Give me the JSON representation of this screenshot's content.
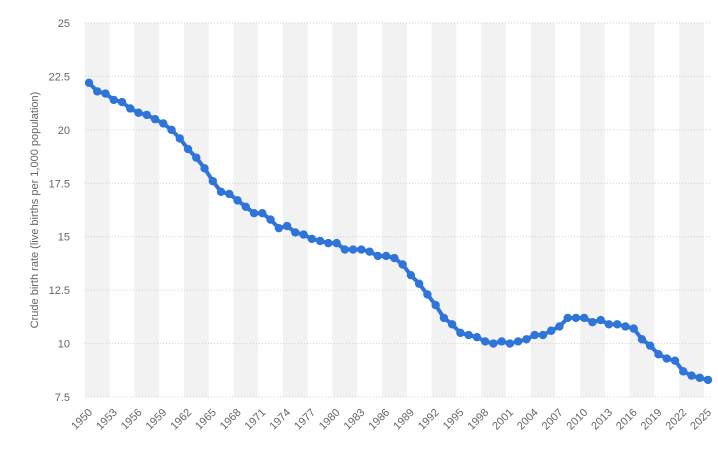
{
  "chart_data": {
    "type": "line",
    "title": "",
    "xlabel": "",
    "ylabel": "Crude birth rate (live births per 1,000 population)",
    "ylim": [
      7.5,
      25
    ],
    "xlim": [
      1950,
      2025
    ],
    "y_ticks": [
      "7.5",
      "10",
      "12.5",
      "15",
      "17.5",
      "20",
      "22.5",
      "25"
    ],
    "x_ticks": [
      "1950",
      "1953",
      "1956",
      "1959",
      "1962",
      "1965",
      "1968",
      "1971",
      "1974",
      "1977",
      "1980",
      "1983",
      "1986",
      "1989",
      "1992",
      "1995",
      "1998",
      "2001",
      "2004",
      "2007",
      "2010",
      "2013",
      "2016",
      "2019",
      "2022",
      "2025"
    ],
    "grid": true,
    "legend": "none",
    "colors": {
      "line": "#2e74d9",
      "band": "#f2f2f2",
      "grid": "#cccccc"
    },
    "series": [
      {
        "x": [
          1950,
          1951,
          1952,
          1953,
          1954,
          1955,
          1956,
          1957,
          1958,
          1959,
          1960,
          1961,
          1962,
          1963,
          1964,
          1965,
          1966,
          1967,
          1968,
          1969,
          1970,
          1971,
          1972,
          1973,
          1974,
          1975,
          1976,
          1977,
          1978,
          1979,
          1980,
          1981,
          1982,
          1983,
          1984,
          1985,
          1986,
          1987,
          1988,
          1989,
          1990,
          1991,
          1992,
          1993,
          1994,
          1995,
          1996,
          1997,
          1998,
          1999,
          2000,
          2001,
          2002,
          2003,
          2004,
          2005,
          2006,
          2007,
          2008,
          2009,
          2010,
          2011,
          2012,
          2013,
          2014,
          2015,
          2016,
          2017,
          2018,
          2019,
          2020,
          2021,
          2022,
          2023,
          2024,
          2025
        ],
        "values": [
          22.2,
          21.8,
          21.7,
          21.4,
          21.3,
          21.0,
          20.8,
          20.7,
          20.5,
          20.3,
          20.0,
          19.6,
          19.1,
          18.7,
          18.2,
          17.6,
          17.1,
          17.0,
          16.7,
          16.4,
          16.1,
          16.1,
          15.8,
          15.4,
          15.5,
          15.2,
          15.1,
          14.9,
          14.8,
          14.7,
          14.7,
          14.4,
          14.4,
          14.4,
          14.3,
          14.1,
          14.1,
          14.0,
          13.7,
          13.2,
          12.8,
          12.3,
          11.8,
          11.2,
          10.9,
          10.5,
          10.4,
          10.3,
          10.1,
          10.0,
          10.1,
          10.0,
          10.1,
          10.2,
          10.4,
          10.4,
          10.6,
          10.8,
          11.2,
          11.2,
          11.2,
          11.0,
          11.1,
          10.9,
          10.9,
          10.8,
          10.7,
          10.2,
          9.9,
          9.5,
          9.3,
          9.2,
          8.7,
          8.5,
          8.4,
          8.3
        ]
      }
    ]
  }
}
